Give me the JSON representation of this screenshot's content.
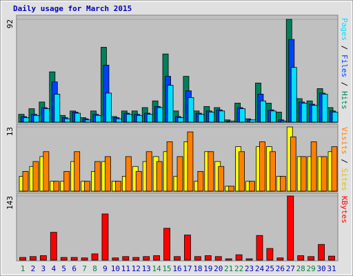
{
  "chart_data": [
    {
      "type": "bar",
      "title": "Daily usage for March 2015",
      "ylim": [
        0,
        92
      ],
      "yticks": [
        92
      ],
      "series": [
        {
          "name": "Hits",
          "color": "#00805c",
          "values": [
            7,
            12,
            18,
            45,
            6,
            10,
            4,
            10,
            67,
            5,
            10,
            10,
            13,
            19,
            61,
            10,
            41,
            10,
            14,
            13,
            2,
            17,
            3,
            35,
            17,
            9,
            92,
            21,
            19,
            30,
            13
          ]
        },
        {
          "name": "Files",
          "color": "#0040ff",
          "values": [
            5,
            7,
            13,
            36,
            4,
            9,
            3,
            7,
            51,
            4,
            8,
            7,
            8,
            14,
            41,
            5,
            28,
            8,
            10,
            11,
            1,
            13,
            2,
            25,
            11,
            2,
            74,
            18,
            16,
            26,
            10
          ]
        },
        {
          "name": "Pages",
          "color": "#00e0ff",
          "values": [
            4,
            6,
            12,
            25,
            3,
            8,
            2,
            6,
            26,
            3,
            7,
            6,
            7,
            13,
            33,
            4,
            22,
            7,
            9,
            10,
            1,
            12,
            2,
            19,
            10,
            1,
            49,
            17,
            15,
            25,
            9
          ]
        }
      ]
    },
    {
      "type": "bar",
      "ylim": [
        0,
        13
      ],
      "yticks": [
        13
      ],
      "series": [
        {
          "name": "Sites",
          "color": "#ffff00",
          "values": [
            3,
            5,
            7,
            2,
            2,
            6,
            2,
            4,
            6,
            2,
            3,
            5,
            6,
            7,
            8,
            3,
            10,
            2,
            8,
            6,
            1,
            9,
            2,
            9,
            9,
            3,
            13,
            7,
            7,
            7,
            8
          ]
        },
        {
          "name": "Visits",
          "color": "#ff8000",
          "values": [
            4,
            6,
            8,
            2,
            4,
            8,
            2,
            6,
            7,
            2,
            7,
            4,
            8,
            6,
            10,
            7,
            12,
            4,
            8,
            5,
            1,
            8,
            2,
            10,
            8,
            3,
            11,
            7,
            10,
            7,
            9
          ]
        }
      ]
    },
    {
      "type": "bar",
      "ylim": [
        0,
        143
      ],
      "yticks": [
        143
      ],
      "categories": [
        "1",
        "2",
        "3",
        "4",
        "5",
        "6",
        "7",
        "8",
        "9",
        "10",
        "11",
        "12",
        "13",
        "14",
        "15",
        "16",
        "17",
        "18",
        "19",
        "20",
        "21",
        "22",
        "23",
        "24",
        "25",
        "26",
        "27",
        "28",
        "29",
        "30",
        "31"
      ],
      "category_colors": [
        "#008040",
        "#0000c0",
        "#0000c0",
        "#0000c0",
        "#0000c0",
        "#0000c0",
        "#008040",
        "#008040",
        "#0000c0",
        "#0000c0",
        "#0000c0",
        "#0000c0",
        "#0000c0",
        "#008040",
        "#008040",
        "#0000c0",
        "#0000c0",
        "#0000c0",
        "#0000c0",
        "#0000c0",
        "#008040",
        "#008040",
        "#0000c0",
        "#0000c0",
        "#0000c0",
        "#0000c0",
        "#0000c0",
        "#008040",
        "#008040",
        "#0000c0",
        "#0000c0"
      ],
      "series": [
        {
          "name": "KBytes",
          "color": "#ff0000",
          "values": [
            6,
            8,
            10,
            62,
            6,
            6,
            5,
            14,
            103,
            5,
            8,
            6,
            8,
            10,
            71,
            8,
            56,
            8,
            10,
            8,
            3,
            12,
            3,
            55,
            26,
            5,
            143,
            10,
            8,
            35,
            9
          ]
        }
      ]
    }
  ]
}
